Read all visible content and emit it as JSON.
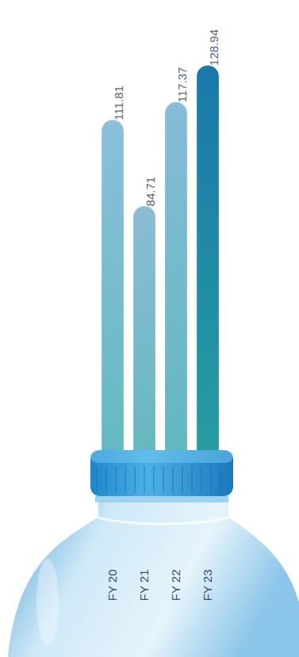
{
  "chart_data": {
    "type": "bar",
    "categories": [
      "FY 20",
      "FY 21",
      "FY 22",
      "FY 23"
    ],
    "values": [
      111.81,
      84.71,
      117.37,
      128.94
    ],
    "colors": [
      "#8ac0da",
      "#8cbcd6",
      "#86bcd8",
      "#1a78aa"
    ],
    "ylim": [
      0,
      140
    ],
    "data_labels": true,
    "tick_labels": "x"
  }
}
